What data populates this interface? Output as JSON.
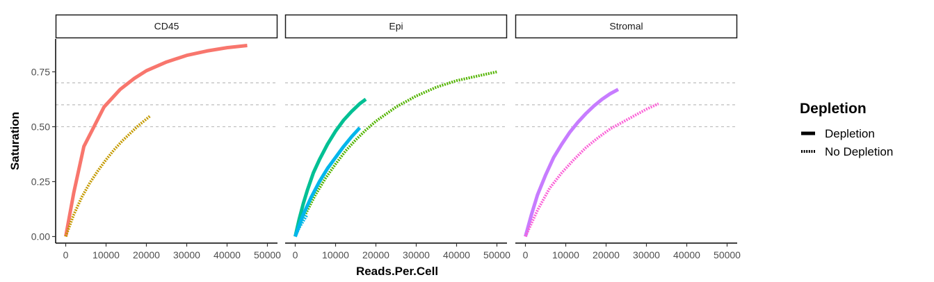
{
  "chart_data": {
    "type": "line",
    "xlabel": "Reads.Per.Cell",
    "ylabel": "Saturation",
    "xlim": [
      -2500,
      52500
    ],
    "ylim": [
      -0.03,
      0.9
    ],
    "x_ticks": [
      0,
      10000,
      20000,
      30000,
      40000,
      50000
    ],
    "x_tick_labels": [
      "0",
      "10000",
      "20000",
      "30000",
      "40000",
      "50000"
    ],
    "y_ticks": [
      0.0,
      0.25,
      0.5,
      0.75
    ],
    "y_tick_labels": [
      "0.00",
      "0.25",
      "0.50",
      "0.75"
    ],
    "reference_lines": [
      0.5,
      0.6,
      0.7
    ],
    "grid": false,
    "legend": {
      "title": "Depletion",
      "position": "right",
      "entries": [
        {
          "label": "Depletion",
          "linetype": "solid"
        },
        {
          "label": "No Depletion",
          "linetype": "dotted"
        }
      ]
    },
    "facets": [
      {
        "label": "CD45",
        "series": [
          {
            "color": "#F8766D",
            "linetype": "solid",
            "x": [
              0,
              2000,
              4500,
              7000,
              9500,
              13500,
              17000,
              20000,
              25000,
              30000,
              35000,
              40000,
              45000
            ],
            "y": [
              0.0,
              0.2,
              0.41,
              0.5,
              0.59,
              0.67,
              0.72,
              0.755,
              0.795,
              0.825,
              0.845,
              0.86,
              0.87
            ]
          },
          {
            "color": "#C49A00",
            "linetype": "dotted",
            "x": [
              0,
              2000,
              4000,
              6000,
              8000,
              10000,
              12000,
              14000,
              16000,
              18000,
              20000,
              21000
            ],
            "y": [
              0.0,
              0.1,
              0.18,
              0.245,
              0.3,
              0.35,
              0.395,
              0.435,
              0.47,
              0.505,
              0.535,
              0.55
            ]
          }
        ]
      },
      {
        "label": "Epi",
        "series": [
          {
            "color": "#53B400",
            "linetype": "dotted",
            "x": [
              0,
              2500,
              5000,
              7500,
              10000,
              12500,
              15000,
              17500,
              20000,
              25000,
              30000,
              35000,
              40000,
              45000,
              50000
            ],
            "y": [
              0.0,
              0.1,
              0.19,
              0.265,
              0.33,
              0.39,
              0.44,
              0.485,
              0.525,
              0.59,
              0.64,
              0.68,
              0.71,
              0.73,
              0.75
            ]
          },
          {
            "color": "#00C094",
            "linetype": "solid",
            "x": [
              0,
              1000,
              2000,
              3000,
              4500,
              6000,
              8000,
              10000,
              12000,
              14000,
              16000,
              17500
            ],
            "y": [
              0.0,
              0.08,
              0.15,
              0.21,
              0.29,
              0.35,
              0.42,
              0.48,
              0.53,
              0.57,
              0.605,
              0.625
            ]
          },
          {
            "color": "#00B6EB",
            "linetype": "solid",
            "x": [
              0,
              2000,
              4000,
              6000,
              8000,
              10000,
              12000,
              14000,
              16000
            ],
            "y": [
              0.0,
              0.1,
              0.18,
              0.25,
              0.31,
              0.36,
              0.41,
              0.455,
              0.495
            ]
          },
          {
            "color": "#00B6EB",
            "linetype": "dotted",
            "x": [
              0,
              1000,
              2000,
              3000
            ],
            "y": [
              0.0,
              0.04,
              0.07,
              0.1
            ]
          }
        ]
      },
      {
        "label": "Stromal",
        "series": [
          {
            "color": "#C77CFF",
            "linetype": "solid",
            "x": [
              0,
              1500,
              3000,
              5000,
              7000,
              9000,
              11000,
              13000,
              15000,
              17000,
              19000,
              21000,
              23000
            ],
            "y": [
              0.0,
              0.1,
              0.19,
              0.28,
              0.36,
              0.42,
              0.475,
              0.52,
              0.56,
              0.595,
              0.625,
              0.65,
              0.67
            ]
          },
          {
            "color": "#FB61D7",
            "linetype": "dotted",
            "x": [
              0,
              3000,
              6000,
              9000,
              12000,
              15000,
              18000,
              21000,
              24000,
              27000,
              30000,
              33000
            ],
            "y": [
              0.0,
              0.12,
              0.22,
              0.29,
              0.35,
              0.405,
              0.45,
              0.49,
              0.52,
              0.55,
              0.58,
              0.605
            ]
          }
        ]
      }
    ]
  }
}
